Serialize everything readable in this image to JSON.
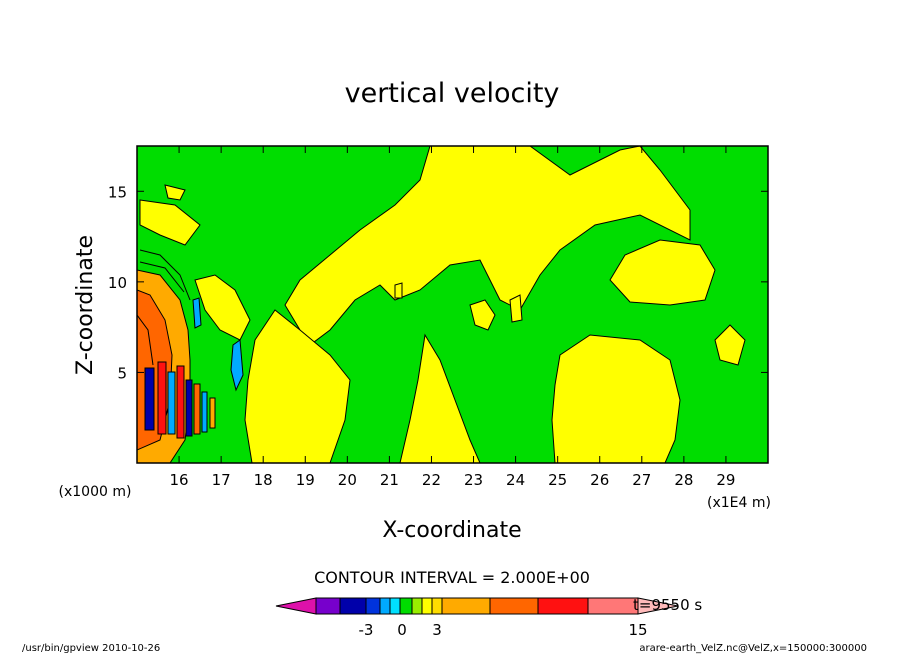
{
  "chart_data": {
    "type": "heatmap",
    "title": "vertical velocity",
    "xlabel": "X-coordinate",
    "ylabel": "Z-coordinate",
    "x_unit_left": "(x1000 m)",
    "x_unit_right": "(x1E4 m)",
    "x_ticks": [
      "16",
      "17",
      "18",
      "19",
      "20",
      "21",
      "22",
      "23",
      "24",
      "25",
      "26",
      "27",
      "28",
      "29"
    ],
    "x_tick_values": [
      16,
      17,
      18,
      19,
      20,
      21,
      22,
      23,
      24,
      25,
      26,
      27,
      28,
      29
    ],
    "y_ticks": [
      "5",
      "10",
      "15"
    ],
    "y_tick_values": [
      5,
      10,
      15
    ],
    "xlim": [
      15.0,
      30.0
    ],
    "ylim": [
      0.0,
      17.5
    ],
    "contour_interval_text": "CONTOUR INTERVAL = 2.000E+00",
    "time_text": "t=9550 s",
    "colorbar": {
      "colors": [
        "#dd11aa",
        "#7700cc",
        "#0000aa",
        "#0033dd",
        "#00aaff",
        "#00e0ff",
        "#00dd00",
        "#99ee00",
        "#ffff00",
        "#ffdd00",
        "#ffaa00",
        "#ff6600",
        "#ff1111",
        "#ff7777",
        "#ffbbbb"
      ],
      "tick_labels": [
        "-3",
        "0",
        "3",
        "15"
      ]
    },
    "regions": [
      {
        "level": "neutral",
        "color": "#00dd00"
      },
      {
        "level": "weak-up",
        "color": "#ffff00"
      },
      {
        "level": "strong-up",
        "color": "#ff6600"
      },
      {
        "level": "very-strong-up",
        "color": "#ff1111"
      },
      {
        "level": "down",
        "color": "#00aaff"
      }
    ],
    "grid": false
  },
  "footer": {
    "left": "/usr/bin/gpview   2010-10-26",
    "right": "arare-earth_VelZ.nc@VelZ,x=150000:300000"
  }
}
